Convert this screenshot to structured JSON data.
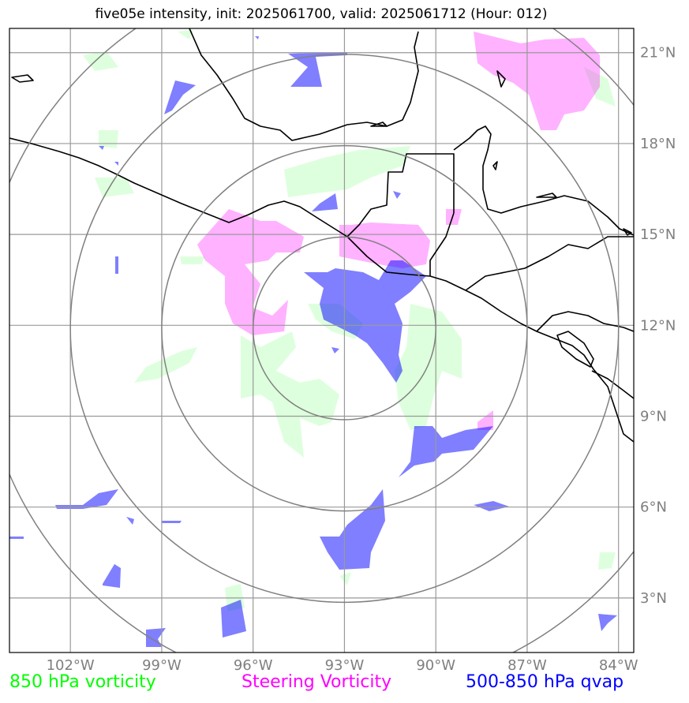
{
  "title": "five05e intensity, init: 2025061700, valid: 2025061712 (Hour: 012)",
  "map": {
    "lon_range": [
      -104,
      -83.5
    ],
    "lat_range": [
      1.2,
      21.8
    ],
    "lat_ticks": [
      {
        "value": 3,
        "label": "3°N"
      },
      {
        "value": 6,
        "label": "6°N"
      },
      {
        "value": 9,
        "label": "9°N"
      },
      {
        "value": 12,
        "label": "12°N"
      },
      {
        "value": 15,
        "label": "15°N"
      },
      {
        "value": 18,
        "label": "18°N"
      },
      {
        "value": 21,
        "label": "21°N"
      }
    ],
    "lon_ticks": [
      {
        "value": -102,
        "label": "102°W"
      },
      {
        "value": -99,
        "label": "99°W"
      },
      {
        "value": -96,
        "label": "96°W"
      },
      {
        "value": -93,
        "label": "93°W"
      },
      {
        "value": -90,
        "label": "90°W"
      },
      {
        "value": -87,
        "label": "87°W"
      },
      {
        "value": -84,
        "label": "84°W"
      }
    ],
    "storm_center": {
      "lon": -93.0,
      "lat": 11.9
    },
    "range_ring_radii_deg": [
      3,
      6,
      9,
      12
    ],
    "colors": {
      "green": "#00ff00",
      "magenta": "#ff00ff",
      "blue": "#0000ff",
      "grid": "#999999",
      "rings": "#808080",
      "coast": "#000000"
    }
  },
  "legend": {
    "green_label": "850 hPa vorticity",
    "magenta_label": "Steering Vorticity",
    "blue_label": "500-850 hPa qvap"
  }
}
